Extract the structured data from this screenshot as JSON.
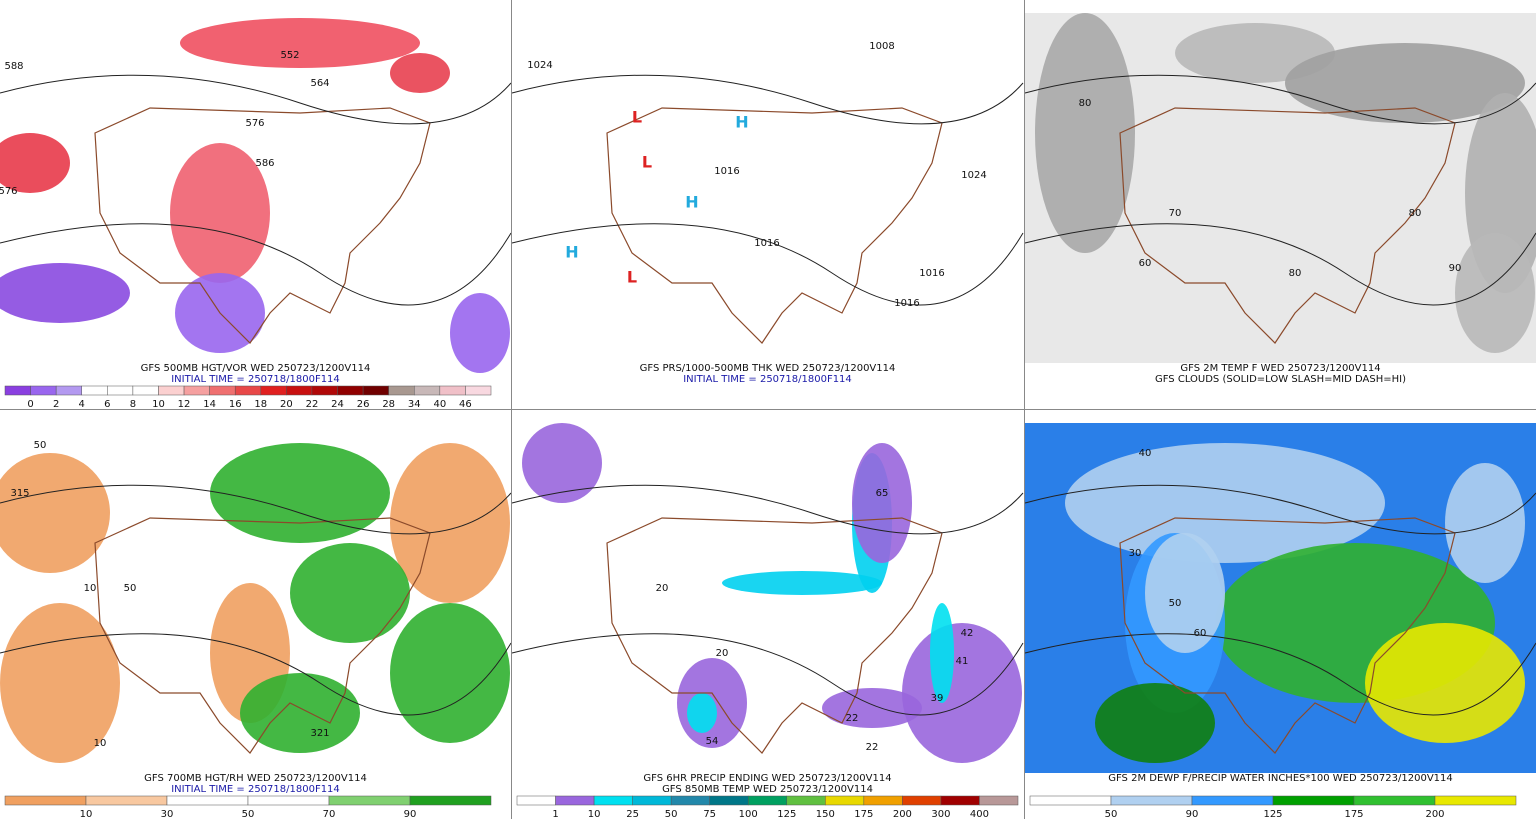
{
  "panels": [
    {
      "caption": [
        "GFS 500MB HGT/VOR WED 250723/1200V114",
        "INITIAL TIME = 250718/1800F114"
      ],
      "colorbar": [
        "0",
        "2",
        "4",
        "6",
        "8",
        "10",
        "12",
        "14",
        "16",
        "18",
        "20",
        "22",
        "24",
        "26",
        "28",
        "34",
        "40",
        "46"
      ],
      "labels": [
        "588",
        "552",
        "564",
        "576",
        "586",
        "576"
      ]
    },
    {
      "caption": [
        "GFS PRS/1000-500MB THK WED 250723/1200V114",
        "INITIAL TIME = 250718/1800F114"
      ],
      "colorbar": [],
      "labels": [
        "1024",
        "1008",
        "1016",
        "1016",
        "1016",
        "1016",
        "1024",
        "H",
        "H",
        "H",
        "L",
        "L",
        "L"
      ]
    },
    {
      "caption": [
        "GFS 2M TEMP F WED 250723/1200V114",
        "GFS CLOUDS (SOLID=LOW SLASH=MID DASH=HI)"
      ],
      "colorbar": [],
      "labels": [
        "80",
        "70",
        "60",
        "80",
        "80",
        "90"
      ]
    },
    {
      "caption": [
        "GFS 700MB HGT/RH WED 250723/1200V114",
        "INITIAL TIME = 250718/1800F114"
      ],
      "colorbar": [
        "10",
        "30",
        "50",
        "70",
        "90"
      ],
      "labels": [
        "50",
        "315",
        "10",
        "50",
        "321",
        "10"
      ]
    },
    {
      "caption": [
        "GFS 6HR PRECIP ENDING WED 250723/1200V114",
        "GFS 850MB TEMP WED 250723/1200V114"
      ],
      "colorbar": [
        "1",
        "10",
        "25",
        "50",
        "75",
        "100",
        "125",
        "150",
        "175",
        "200",
        "300",
        "400"
      ],
      "labels": [
        "65",
        "42",
        "41",
        "39",
        "22",
        "22",
        "54",
        "20",
        "20"
      ]
    },
    {
      "caption": [
        "GFS 2M DEWP F/PRECIP WATER INCHES*100 WED 250723/1200V114"
      ],
      "colorbar": [
        "50",
        "90",
        "125",
        "175",
        "200"
      ],
      "labels": [
        "40",
        "30",
        "50",
        "60"
      ]
    }
  ]
}
